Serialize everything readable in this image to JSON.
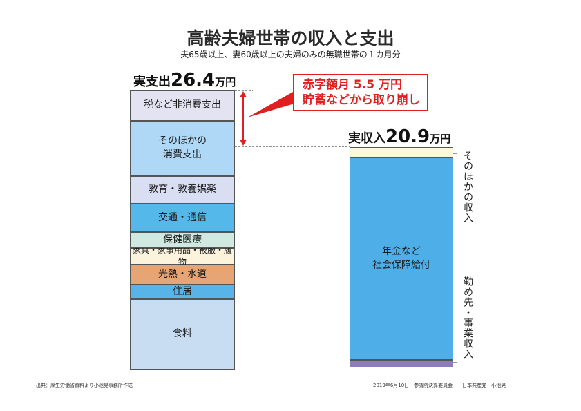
{
  "title": "高齢夫婦世帯の収入と支出",
  "subtitle": "夫65歳以上、妻60歳以上の夫婦のみの無職世帯の１カ月分",
  "expense_total": {
    "prefix": "実支出",
    "value": "26.4",
    "unit": "万円"
  },
  "income_total": {
    "prefix": "実収入",
    "value": "20.9",
    "unit": "万円"
  },
  "deficit": {
    "line1": "赤字額月 5.5 万円",
    "line2": "貯蓄などから取り崩し"
  },
  "income_labels": {
    "other": "そのほかの収入",
    "work": "勤め先・事業収入"
  },
  "source": "出典：厚生労働省資料より小池晃事務所作成",
  "footer": "2019年6月10日　参議院決算委員会　　日本共産党　小池晃",
  "colors": {
    "deficit": "#e02020",
    "dashed": "#222222",
    "border": "#555555"
  },
  "chart_data": {
    "type": "bar",
    "categories": [
      "実支出",
      "実収入"
    ],
    "series": [
      {
        "bar": "実支出",
        "name": "食料",
        "color": "#c8dcf2"
      },
      {
        "bar": "実支出",
        "name": "住居",
        "color": "#58b4e8"
      },
      {
        "bar": "実支出",
        "name": "光熱・水道",
        "color": "#e8a574"
      },
      {
        "bar": "実支出",
        "name": "家具・家事用品・被服・履物",
        "color": "#fbf3dc"
      },
      {
        "bar": "実支出",
        "name": "保健医療",
        "color": "#cfe9e0"
      },
      {
        "bar": "実支出",
        "name": "交通・通信",
        "color": "#55b8ea"
      },
      {
        "bar": "実支出",
        "name": "教育・教養娯楽",
        "color": "#d9def2"
      },
      {
        "bar": "実支出",
        "name": "そのほかの消費支出",
        "color": "#aed8f5"
      },
      {
        "bar": "実支出",
        "name": "税など非消費支出",
        "color": "#e3e3f2"
      },
      {
        "bar": "実収入",
        "name": "勤め先・事業収入",
        "color": "#8c7cbc"
      },
      {
        "bar": "実収入",
        "name": "年金など社会保障給付",
        "color": "#4eaee8"
      },
      {
        "bar": "実収入",
        "name": "そのほかの収入",
        "color": "#fbf8dc"
      }
    ],
    "totals": {
      "実支出": 26.4,
      "実収入": 20.9
    },
    "segment_label_text": {
      "食料": "食料",
      "住居": "住居",
      "光熱・水道": "光熱・水道",
      "家具・家事用品・被服・履物": "家具・家事用品・被服・履物",
      "保健医療": "保健医療",
      "交通・通信": "交通・通信",
      "教育・教養娯楽": "教育・教養娯楽",
      "そのほかの消費支出": "そのほかの\n消費支出",
      "税など非消費支出": "税など非消費支出",
      "年金など社会保障給付": "年金など\n社会保障給付"
    },
    "unit": "万円",
    "deficit": 5.5
  }
}
